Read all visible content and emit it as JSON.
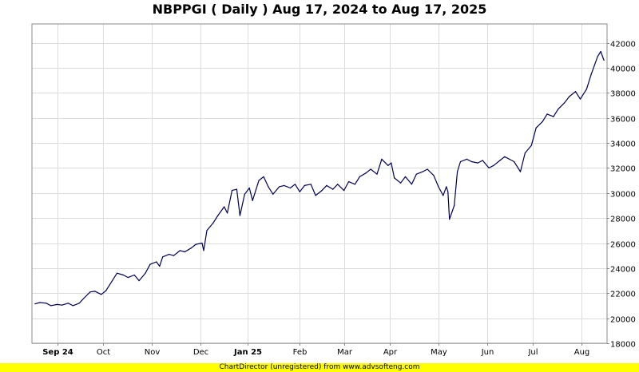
{
  "title": "NBPPGI ( Daily ) Aug 17, 2024 to Aug 17, 2025",
  "footer": "ChartDirector (unregistered) from www.advsofteng.com",
  "colors": {
    "line": "#000050",
    "grid": "#dcdcdc",
    "footer_bg": "#ffff00"
  },
  "chart_data": {
    "type": "line",
    "title": "NBPPGI ( Daily ) Aug 17, 2024 to Aug 17, 2025",
    "xlabel": "",
    "ylabel": "",
    "ylim": [
      18000,
      43500
    ],
    "y_ticks": [
      18000,
      20000,
      22000,
      24000,
      26000,
      28000,
      30000,
      32000,
      34000,
      36000,
      38000,
      40000,
      42000
    ],
    "y_axis_side": "right",
    "grid": true,
    "x_ticks": [
      {
        "label": "Sep 24",
        "date": "2024-09-02",
        "bold": true
      },
      {
        "label": "Oct",
        "date": "2024-10-01",
        "bold": false
      },
      {
        "label": "Nov",
        "date": "2024-11-01",
        "bold": false
      },
      {
        "label": "Dec",
        "date": "2024-12-02",
        "bold": false
      },
      {
        "label": "Jan 25",
        "date": "2025-01-01",
        "bold": true
      },
      {
        "label": "Feb",
        "date": "2025-02-03",
        "bold": false
      },
      {
        "label": "Mar",
        "date": "2025-03-03",
        "bold": false
      },
      {
        "label": "Apr",
        "date": "2025-04-01",
        "bold": false
      },
      {
        "label": "May",
        "date": "2025-05-02",
        "bold": false
      },
      {
        "label": "Jun",
        "date": "2025-06-02",
        "bold": false
      },
      {
        "label": "Jul",
        "date": "2025-07-01",
        "bold": false
      },
      {
        "label": "Aug",
        "date": "2025-08-01",
        "bold": false
      }
    ],
    "series": [
      {
        "name": "NBPPGI",
        "points": [
          [
            "2024-08-19",
            21150
          ],
          [
            "2024-08-22",
            21250
          ],
          [
            "2024-08-26",
            21200
          ],
          [
            "2024-08-29",
            21000
          ],
          [
            "2024-09-02",
            21100
          ],
          [
            "2024-09-05",
            21050
          ],
          [
            "2024-09-09",
            21200
          ],
          [
            "2024-09-12",
            21000
          ],
          [
            "2024-09-16",
            21200
          ],
          [
            "2024-09-19",
            21600
          ],
          [
            "2024-09-23",
            22100
          ],
          [
            "2024-09-26",
            22150
          ],
          [
            "2024-09-30",
            21900
          ],
          [
            "2024-10-03",
            22200
          ],
          [
            "2024-10-07",
            23000
          ],
          [
            "2024-10-10",
            23600
          ],
          [
            "2024-10-14",
            23450
          ],
          [
            "2024-10-17",
            23250
          ],
          [
            "2024-10-21",
            23450
          ],
          [
            "2024-10-24",
            23000
          ],
          [
            "2024-10-28",
            23600
          ],
          [
            "2024-10-31",
            24300
          ],
          [
            "2024-11-04",
            24500
          ],
          [
            "2024-11-06",
            24150
          ],
          [
            "2024-11-08",
            24900
          ],
          [
            "2024-11-12",
            25100
          ],
          [
            "2024-11-15",
            25000
          ],
          [
            "2024-11-19",
            25400
          ],
          [
            "2024-11-22",
            25300
          ],
          [
            "2024-11-26",
            25600
          ],
          [
            "2024-11-29",
            25900
          ],
          [
            "2024-12-03",
            26000
          ],
          [
            "2024-12-04",
            25400
          ],
          [
            "2024-12-06",
            27000
          ],
          [
            "2024-12-10",
            27600
          ],
          [
            "2024-12-13",
            28200
          ],
          [
            "2024-12-17",
            28900
          ],
          [
            "2024-12-19",
            28400
          ],
          [
            "2024-12-22",
            30200
          ],
          [
            "2024-12-25",
            30300
          ],
          [
            "2024-12-27",
            28200
          ],
          [
            "2024-12-30",
            29900
          ],
          [
            "2025-01-02",
            30400
          ],
          [
            "2025-01-04",
            29400
          ],
          [
            "2025-01-08",
            31000
          ],
          [
            "2025-01-11",
            31300
          ],
          [
            "2025-01-14",
            30500
          ],
          [
            "2025-01-17",
            29900
          ],
          [
            "2025-01-21",
            30500
          ],
          [
            "2025-01-24",
            30600
          ],
          [
            "2025-01-28",
            30400
          ],
          [
            "2025-01-31",
            30700
          ],
          [
            "2025-02-03",
            30100
          ],
          [
            "2025-02-06",
            30600
          ],
          [
            "2025-02-10",
            30700
          ],
          [
            "2025-02-13",
            29800
          ],
          [
            "2025-02-17",
            30200
          ],
          [
            "2025-02-20",
            30600
          ],
          [
            "2025-02-24",
            30300
          ],
          [
            "2025-02-27",
            30700
          ],
          [
            "2025-03-03",
            30200
          ],
          [
            "2025-03-06",
            30900
          ],
          [
            "2025-03-10",
            30700
          ],
          [
            "2025-03-13",
            31300
          ],
          [
            "2025-03-17",
            31600
          ],
          [
            "2025-03-20",
            31900
          ],
          [
            "2025-03-24",
            31500
          ],
          [
            "2025-03-27",
            32700
          ],
          [
            "2025-03-31",
            32200
          ],
          [
            "2025-04-02",
            32400
          ],
          [
            "2025-04-04",
            31200
          ],
          [
            "2025-04-08",
            30800
          ],
          [
            "2025-04-11",
            31300
          ],
          [
            "2025-04-15",
            30700
          ],
          [
            "2025-04-18",
            31500
          ],
          [
            "2025-04-22",
            31700
          ],
          [
            "2025-04-25",
            31900
          ],
          [
            "2025-04-29",
            31400
          ],
          [
            "2025-05-02",
            30500
          ],
          [
            "2025-05-05",
            29800
          ],
          [
            "2025-05-07",
            30500
          ],
          [
            "2025-05-08",
            30100
          ],
          [
            "2025-05-09",
            27900
          ],
          [
            "2025-05-12",
            29000
          ],
          [
            "2025-05-14",
            31700
          ],
          [
            "2025-05-16",
            32500
          ],
          [
            "2025-05-20",
            32700
          ],
          [
            "2025-05-23",
            32500
          ],
          [
            "2025-05-27",
            32400
          ],
          [
            "2025-05-30",
            32600
          ],
          [
            "2025-06-03",
            32000
          ],
          [
            "2025-06-06",
            32200
          ],
          [
            "2025-06-10",
            32600
          ],
          [
            "2025-06-13",
            32900
          ],
          [
            "2025-06-16",
            32700
          ],
          [
            "2025-06-19",
            32500
          ],
          [
            "2025-06-23",
            31700
          ],
          [
            "2025-06-26",
            33200
          ],
          [
            "2025-06-30",
            33800
          ],
          [
            "2025-07-03",
            35200
          ],
          [
            "2025-07-07",
            35700
          ],
          [
            "2025-07-10",
            36300
          ],
          [
            "2025-07-14",
            36100
          ],
          [
            "2025-07-17",
            36700
          ],
          [
            "2025-07-21",
            37200
          ],
          [
            "2025-07-24",
            37700
          ],
          [
            "2025-07-28",
            38100
          ],
          [
            "2025-07-31",
            37500
          ],
          [
            "2025-08-04",
            38300
          ],
          [
            "2025-08-07",
            39500
          ],
          [
            "2025-08-11",
            40900
          ],
          [
            "2025-08-13",
            41300
          ],
          [
            "2025-08-15",
            40600
          ]
        ]
      }
    ]
  }
}
